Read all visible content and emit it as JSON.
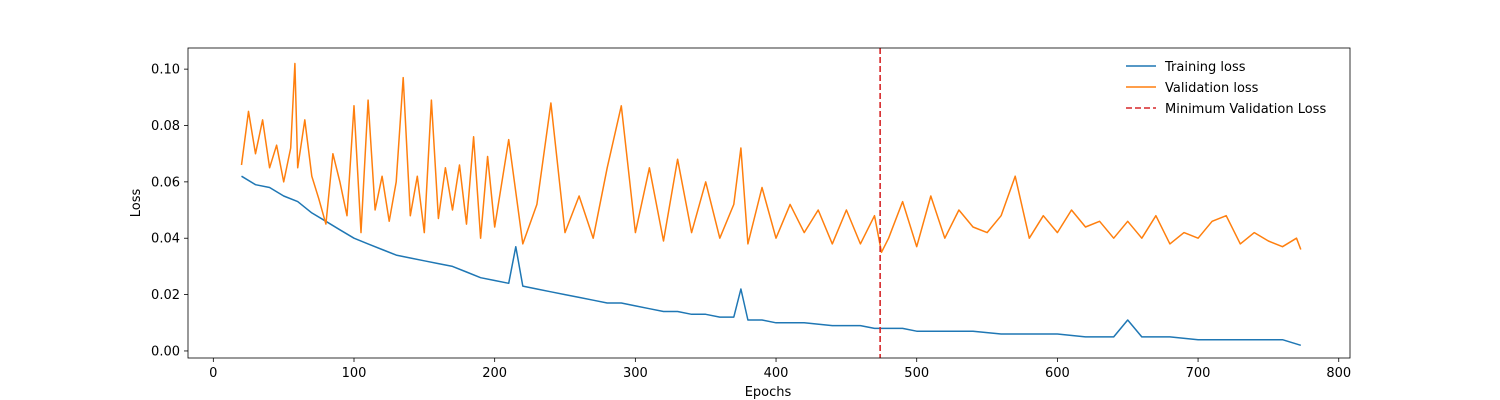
{
  "chart_data": {
    "type": "line",
    "title": "",
    "xlabel": "Epochs",
    "ylabel": "Loss",
    "xlim": [
      -18,
      808
    ],
    "ylim": [
      -0.0025,
      0.1075
    ],
    "xticks": [
      0,
      100,
      200,
      300,
      400,
      500,
      600,
      700,
      800
    ],
    "yticks": [
      0.0,
      0.02,
      0.04,
      0.06,
      0.08,
      0.1
    ],
    "xtick_labels": [
      "0",
      "100",
      "200",
      "300",
      "400",
      "500",
      "600",
      "700",
      "800"
    ],
    "ytick_labels": [
      "0.00",
      "0.02",
      "0.04",
      "0.06",
      "0.08",
      "0.10"
    ],
    "grid": false,
    "legend": {
      "position": "upper-right",
      "entries": [
        "Training loss",
        "Validation loss",
        "Minimum Validation Loss"
      ]
    },
    "series": [
      {
        "name": "Training loss",
        "color": "#1f77b4",
        "x": [
          20,
          30,
          40,
          50,
          60,
          70,
          80,
          90,
          100,
          110,
          120,
          130,
          140,
          150,
          160,
          170,
          180,
          190,
          200,
          210,
          215,
          220,
          230,
          240,
          250,
          260,
          270,
          280,
          290,
          300,
          310,
          320,
          330,
          340,
          350,
          360,
          370,
          375,
          380,
          390,
          400,
          420,
          440,
          460,
          470,
          480,
          490,
          500,
          520,
          540,
          560,
          580,
          600,
          620,
          640,
          650,
          660,
          680,
          700,
          720,
          740,
          760,
          773
        ],
        "y": [
          0.062,
          0.059,
          0.058,
          0.055,
          0.053,
          0.049,
          0.046,
          0.043,
          0.04,
          0.038,
          0.036,
          0.034,
          0.033,
          0.032,
          0.031,
          0.03,
          0.028,
          0.026,
          0.025,
          0.024,
          0.037,
          0.023,
          0.022,
          0.021,
          0.02,
          0.019,
          0.018,
          0.017,
          0.017,
          0.016,
          0.015,
          0.014,
          0.014,
          0.013,
          0.013,
          0.012,
          0.012,
          0.022,
          0.011,
          0.011,
          0.01,
          0.01,
          0.009,
          0.009,
          0.008,
          0.008,
          0.008,
          0.007,
          0.007,
          0.007,
          0.006,
          0.006,
          0.006,
          0.005,
          0.005,
          0.011,
          0.005,
          0.005,
          0.004,
          0.004,
          0.004,
          0.004,
          0.002
        ]
      },
      {
        "name": "Validation loss",
        "color": "#ff7f0e",
        "x": [
          20,
          25,
          30,
          35,
          40,
          45,
          50,
          55,
          58,
          60,
          65,
          70,
          75,
          80,
          85,
          90,
          95,
          100,
          105,
          110,
          115,
          120,
          125,
          130,
          135,
          140,
          145,
          150,
          155,
          160,
          165,
          170,
          175,
          180,
          185,
          190,
          195,
          200,
          210,
          220,
          230,
          240,
          250,
          260,
          270,
          280,
          290,
          300,
          310,
          320,
          330,
          340,
          350,
          360,
          370,
          375,
          380,
          390,
          400,
          410,
          420,
          430,
          440,
          450,
          460,
          470,
          475,
          480,
          490,
          500,
          510,
          520,
          530,
          540,
          550,
          560,
          570,
          580,
          590,
          600,
          610,
          620,
          630,
          640,
          650,
          660,
          670,
          680,
          690,
          700,
          710,
          720,
          730,
          740,
          750,
          760,
          770,
          773
        ],
        "y": [
          0.066,
          0.085,
          0.07,
          0.082,
          0.065,
          0.073,
          0.06,
          0.072,
          0.102,
          0.065,
          0.082,
          0.062,
          0.054,
          0.045,
          0.07,
          0.06,
          0.048,
          0.087,
          0.042,
          0.089,
          0.05,
          0.062,
          0.046,
          0.06,
          0.097,
          0.048,
          0.062,
          0.042,
          0.089,
          0.047,
          0.065,
          0.05,
          0.066,
          0.045,
          0.076,
          0.04,
          0.069,
          0.044,
          0.075,
          0.038,
          0.052,
          0.088,
          0.042,
          0.055,
          0.04,
          0.065,
          0.087,
          0.042,
          0.065,
          0.039,
          0.068,
          0.042,
          0.06,
          0.04,
          0.052,
          0.072,
          0.038,
          0.058,
          0.04,
          0.052,
          0.042,
          0.05,
          0.038,
          0.05,
          0.038,
          0.048,
          0.035,
          0.04,
          0.053,
          0.037,
          0.055,
          0.04,
          0.05,
          0.044,
          0.042,
          0.048,
          0.062,
          0.04,
          0.048,
          0.042,
          0.05,
          0.044,
          0.046,
          0.04,
          0.046,
          0.04,
          0.048,
          0.038,
          0.042,
          0.04,
          0.046,
          0.048,
          0.038,
          0.042,
          0.039,
          0.037,
          0.04,
          0.036
        ]
      }
    ],
    "vlines": [
      {
        "name": "Minimum Validation Loss",
        "x": 474,
        "color": "#d62728",
        "style": "dashed"
      }
    ]
  }
}
